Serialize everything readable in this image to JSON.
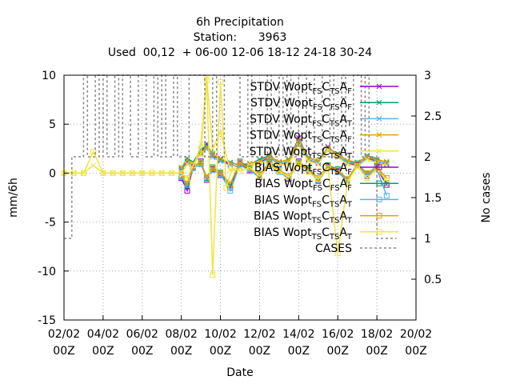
{
  "chart_data": {
    "type": "line",
    "title_lines": [
      "6h Precipitation",
      "Station:      3963",
      "Used  00,12  + 06-00 12-06 18-12 24-18 30-24"
    ],
    "xlabel": "Date",
    "ylabel": "mm/6h",
    "y2label": "No cases",
    "xlim": [
      0,
      18
    ],
    "ylim": [
      -15,
      10
    ],
    "y2lim": [
      0,
      3
    ],
    "grid": true,
    "legend_position": "top-right",
    "xticks": [
      {
        "v": 0,
        "l1": "02/02",
        "l2": "00Z"
      },
      {
        "v": 2,
        "l1": "04/02",
        "l2": "00Z"
      },
      {
        "v": 4,
        "l1": "06/02",
        "l2": "00Z"
      },
      {
        "v": 6,
        "l1": "08/02",
        "l2": "00Z"
      },
      {
        "v": 8,
        "l1": "10/02",
        "l2": "00Z"
      },
      {
        "v": 10,
        "l1": "12/02",
        "l2": "00Z"
      },
      {
        "v": 12,
        "l1": "14/02",
        "l2": "00Z"
      },
      {
        "v": 14,
        "l1": "16/02",
        "l2": "00Z"
      },
      {
        "v": 16,
        "l1": "18/02",
        "l2": "00Z"
      },
      {
        "v": 18,
        "l1": "20/02",
        "l2": "00Z"
      }
    ],
    "yticks": [
      10,
      5,
      0,
      -5,
      -10,
      -15
    ],
    "y2ticks": [
      "3",
      "2.5",
      "2",
      "1.5",
      "1",
      "0.5"
    ],
    "y2tick_values": [
      3,
      2.5,
      2,
      1.5,
      1,
      0.5
    ],
    "series": [
      {
        "label": "STDV Wopt",
        "sub": [
          "FS",
          "TS",
          "F"
        ],
        "color": "#9400d3",
        "marker": "x",
        "axis": "y",
        "x": [
          6,
          6.3,
          6.6,
          7,
          7.3,
          7.6,
          8,
          8.5,
          9,
          9.5,
          10,
          10.5,
          11,
          11.5,
          12,
          12.5,
          13,
          13.5,
          14,
          14.5,
          15,
          15.5,
          16,
          16.5
        ],
        "y": [
          0.3,
          1.2,
          0.8,
          2.1,
          3.0,
          1.8,
          1.4,
          0.9,
          0.6,
          0.7,
          1.1,
          1.6,
          0.9,
          1.2,
          3.6,
          1.4,
          1.0,
          2.7,
          1.8,
          1.0,
          0.8,
          1.6,
          1.2,
          0.9
        ]
      },
      {
        "label": "STDV Wopt",
        "sub": [
          "FS",
          "FS",
          "F"
        ],
        "color": "#009e73",
        "marker": "x",
        "axis": "y",
        "x": [
          6,
          6.3,
          6.6,
          7,
          7.3,
          7.6,
          8,
          8.5,
          9,
          9.5,
          10,
          10.5,
          11,
          11.5,
          12,
          12.5,
          13,
          13.5,
          14,
          14.5,
          15,
          15.5,
          16,
          16.5
        ],
        "y": [
          0.5,
          1.5,
          1.1,
          2.4,
          2.8,
          2.0,
          1.3,
          1.1,
          0.8,
          0.9,
          1.4,
          1.8,
          1.1,
          1.4,
          3.2,
          1.6,
          1.2,
          2.5,
          2.0,
          1.2,
          1.0,
          1.8,
          1.4,
          1.1
        ]
      },
      {
        "label": "STDV Wopt",
        "sub": [
          "FS",
          "TS",
          "T"
        ],
        "color": "#56b4e9",
        "marker": "x",
        "axis": "y",
        "x": [
          6,
          6.3,
          6.6,
          7,
          7.3,
          7.6,
          8,
          8.5,
          9,
          9.5,
          10,
          10.5,
          11,
          11.5,
          12,
          12.5,
          13,
          13.5,
          14,
          14.5,
          15,
          15.5,
          16,
          16.5
        ],
        "y": [
          0.4,
          1.0,
          0.9,
          1.9,
          2.5,
          1.6,
          1.2,
          0.8,
          0.7,
          0.8,
          1.0,
          1.5,
          1.0,
          1.1,
          3.0,
          1.3,
          1.1,
          2.3,
          1.7,
          1.1,
          0.9,
          1.5,
          1.1,
          1.0
        ]
      },
      {
        "label": "STDV Wopt",
        "sub": [
          "TS",
          "TS",
          "F"
        ],
        "color": "#e69f00",
        "marker": "x",
        "axis": "y",
        "x": [
          6,
          6.3,
          6.6,
          7,
          7.3,
          7.6,
          8,
          8.5,
          9,
          9.5,
          10,
          10.5,
          11,
          11.5,
          12,
          12.5,
          13,
          13.5,
          14,
          14.5,
          15,
          15.5,
          16,
          16.5
        ],
        "y": [
          0.6,
          1.3,
          1.0,
          2.0,
          2.7,
          1.9,
          1.5,
          1.0,
          0.9,
          1.0,
          1.2,
          1.7,
          1.2,
          1.3,
          3.4,
          1.5,
          1.3,
          2.6,
          1.9,
          1.3,
          1.1,
          1.7,
          1.3,
          1.2
        ]
      },
      {
        "label": "STDV Wopt",
        "sub": [
          "TS",
          "TS",
          "T"
        ],
        "color": "#f0e442",
        "marker": "x",
        "axis": "y",
        "x": [
          0,
          0.5,
          1,
          1.5,
          2,
          2.5,
          3,
          3.5,
          4,
          4.5,
          5,
          5.5,
          6,
          6.3,
          6.6,
          7,
          7.3,
          7.6,
          8,
          8.5,
          9,
          9.5,
          10,
          10.5,
          11,
          11.5,
          12,
          12.5,
          13,
          13.5,
          14,
          14.5,
          15,
          15.5,
          16,
          16.5
        ],
        "y": [
          0,
          0,
          0,
          0.8,
          0,
          0,
          0,
          0,
          0,
          0,
          0,
          0,
          0,
          0.9,
          0.5,
          3.0,
          9.8,
          2.5,
          4.2,
          0.3,
          0.5,
          0.8,
          1.0,
          1.2,
          0.8,
          1.0,
          2.8,
          1.2,
          0.9,
          2.4,
          1.6,
          0.9,
          0.7,
          1.4,
          1.0,
          0.8
        ]
      },
      {
        "label": "BIAS Wopt",
        "sub": [
          "FS",
          "TS",
          "F"
        ],
        "color": "#9400d3",
        "marker": "square",
        "axis": "y",
        "x": [
          6,
          6.3,
          6.6,
          7,
          7.3,
          7.6,
          8,
          8.5,
          9,
          9.5,
          10,
          10.5,
          11,
          11.5,
          12,
          12.5,
          13,
          13.5,
          14,
          14.5,
          15,
          15.5,
          16,
          16.5
        ],
        "y": [
          -0.5,
          -1.8,
          0.6,
          1.2,
          -0.7,
          0.4,
          -0.2,
          -1.5,
          1.0,
          0.3,
          -0.4,
          0.9,
          0.2,
          -0.6,
          1.2,
          0.3,
          -0.8,
          0.6,
          0.2,
          -0.9,
          0.8,
          -0.3,
          0.5,
          -1.2
        ]
      },
      {
        "label": "BIAS Wopt",
        "sub": [
          "FS",
          "FS",
          "F"
        ],
        "color": "#009e73",
        "marker": "square",
        "axis": "y",
        "x": [
          6,
          6.3,
          6.6,
          7,
          7.3,
          7.6,
          8,
          8.5,
          9,
          9.5,
          10,
          10.5,
          11,
          11.5,
          12,
          12.5,
          13,
          13.5,
          14,
          14.5,
          15,
          15.5,
          16,
          16.5
        ],
        "y": [
          -0.3,
          -1.4,
          0.8,
          1.0,
          -0.5,
          0.6,
          0.0,
          -1.3,
          1.2,
          0.5,
          -0.2,
          1.1,
          0.4,
          -0.4,
          1.0,
          0.5,
          -0.6,
          0.8,
          0.4,
          -0.7,
          1.0,
          -0.1,
          0.7,
          -1.0
        ]
      },
      {
        "label": "BIAS Wopt",
        "sub": [
          "FS",
          "TS",
          "T"
        ],
        "color": "#56b4e9",
        "marker": "square",
        "axis": "y",
        "x": [
          6,
          6.3,
          6.6,
          7,
          7.3,
          7.6,
          8,
          8.5,
          9,
          9.5,
          10,
          10.5,
          11,
          11.5,
          12,
          12.5,
          13,
          13.5,
          14,
          14.5,
          15,
          15.5,
          16,
          16.5
        ],
        "y": [
          -0.4,
          -1.2,
          0.5,
          0.9,
          -0.6,
          0.3,
          -0.1,
          -1.8,
          0.9,
          0.2,
          -0.3,
          0.8,
          0.1,
          -0.5,
          0.9,
          0.2,
          -0.7,
          0.5,
          0.1,
          -0.8,
          0.7,
          -0.2,
          0.4,
          -2.3
        ]
      },
      {
        "label": "BIAS Wopt",
        "sub": [
          "TS",
          "TS",
          "T"
        ],
        "color": "#e69f00",
        "marker": "square",
        "axis": "y",
        "x": [
          6,
          6.3,
          6.6,
          7,
          7.3,
          7.6,
          8,
          8.5,
          9,
          9.5,
          10,
          10.5,
          11,
          11.5,
          12,
          12.5,
          13,
          13.5,
          14,
          14.5,
          15,
          15.5,
          16,
          16.5
        ],
        "y": [
          -0.2,
          -1.0,
          0.7,
          1.1,
          -0.4,
          0.5,
          0.1,
          -1.1,
          1.1,
          0.4,
          -0.1,
          1.0,
          0.3,
          -0.3,
          1.1,
          0.4,
          -0.5,
          0.7,
          0.3,
          -0.6,
          0.9,
          0.0,
          0.6,
          -0.5
        ]
      },
      {
        "label": "BIAS Wopt",
        "sub": [
          "TS",
          "TS",
          "T"
        ],
        "color": "#f0e442",
        "marker": "square",
        "axis": "y",
        "x": [
          0,
          0.5,
          1,
          1.5,
          2,
          2.5,
          3,
          3.5,
          4,
          4.5,
          5,
          5.5,
          6,
          6.3,
          6.6,
          7,
          7.3,
          7.6,
          8,
          8.3,
          8.6,
          9,
          9.5,
          10,
          10.5,
          11,
          11.5,
          12,
          12.5,
          13,
          13.5,
          14,
          14.5,
          15,
          15.5,
          16,
          16.5
        ],
        "y": [
          0,
          0,
          0,
          2.2,
          0,
          0,
          0,
          0,
          0,
          0,
          0,
          0,
          0,
          -0.5,
          0.8,
          2.0,
          9.5,
          -10.4,
          9.3,
          -1.5,
          0.5,
          0.2,
          0.6,
          -0.3,
          0.8,
          0.2,
          -0.4,
          0.9,
          0.1,
          -0.6,
          0.5,
          -8.2,
          -0.9,
          0.7,
          -0.5,
          0.4,
          -0.8
        ]
      },
      {
        "label": "CASES",
        "sub": [],
        "color": "#888888",
        "marker": "none",
        "dashed": true,
        "axis": "y2",
        "x": [
          0,
          0.2,
          0.4,
          0.6,
          0.8,
          1.0,
          1.2,
          1.4,
          1.6,
          1.8,
          2.0,
          2.2,
          2.4,
          2.6,
          2.8,
          3.0,
          3.2,
          3.4,
          3.6,
          3.8,
          4.0,
          4.2,
          4.4,
          4.6,
          4.8,
          5.0,
          5.2,
          5.4,
          5.6,
          5.8,
          6.0,
          6.2,
          6.4,
          6.6,
          6.8,
          7.0,
          7.2,
          7.4,
          7.6,
          7.8,
          8.0,
          8.2,
          8.4,
          8.6,
          8.8,
          9.0,
          9.2,
          9.4,
          9.6,
          9.8,
          10.0,
          10.2,
          10.4,
          10.6,
          10.8,
          11.0,
          11.2,
          11.4,
          11.6,
          11.8,
          12.0,
          12.2,
          12.4,
          12.6,
          12.8,
          13.0,
          13.2,
          13.4,
          13.6,
          13.8,
          14.0,
          14.2,
          14.4,
          14.6,
          14.8,
          15.0,
          15.2,
          15.4,
          15.6,
          15.8,
          16.0,
          16.2,
          16.4,
          16.6,
          16.8,
          17.0
        ],
        "y": [
          1,
          1,
          2,
          2,
          2,
          3,
          2,
          2,
          3,
          2,
          3,
          2,
          2,
          3,
          2,
          3,
          3,
          2,
          2,
          3,
          3,
          2,
          2,
          3,
          2,
          3,
          2,
          2,
          3,
          2,
          2,
          2,
          3,
          3,
          3,
          3,
          2,
          2,
          3,
          2,
          2,
          3,
          3,
          3,
          3,
          2,
          2,
          3,
          2,
          2,
          2,
          2,
          3,
          2,
          2,
          3,
          2,
          3,
          2,
          2,
          3,
          3,
          2,
          2,
          3,
          3,
          2,
          2,
          3,
          2,
          2,
          3,
          2,
          2,
          3,
          3,
          2,
          3,
          2,
          2,
          1,
          1,
          1,
          1,
          1,
          1
        ]
      }
    ]
  }
}
